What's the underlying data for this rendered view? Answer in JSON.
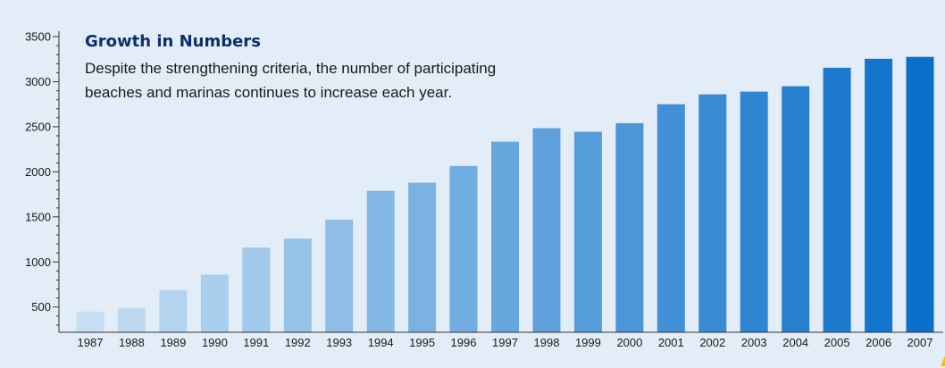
{
  "chart_data": {
    "type": "bar",
    "title": "Growth in Numbers",
    "subtitle": "Despite the strengthening criteria, the number of participating beaches and marinas continues to increase each year.",
    "xlabel": "",
    "ylabel": "",
    "categories": [
      "1987",
      "1988",
      "1989",
      "1990",
      "1991",
      "1992",
      "1993",
      "1994",
      "1995",
      "1996",
      "1997",
      "1998",
      "1999",
      "2000",
      "2001",
      "2002",
      "2003",
      "2004",
      "2005",
      "2006",
      "2007"
    ],
    "values": [
      450,
      490,
      690,
      860,
      1160,
      1260,
      1470,
      1790,
      1880,
      2065,
      2335,
      2485,
      2445,
      2540,
      2750,
      2860,
      2890,
      2950,
      3155,
      3255,
      3275
    ],
    "ylim": [
      220,
      3540
    ],
    "yticks": [
      500,
      1000,
      1500,
      2000,
      2500,
      3000,
      3500
    ],
    "grid": false,
    "legend": "none",
    "colors": {
      "background": "#e2edf7",
      "bar_start": "#c6dff3",
      "bar_end": "#0a6fc9",
      "axis": "#333333",
      "title": "#0d2f6b",
      "corner_mark": "#f5c400"
    }
  }
}
